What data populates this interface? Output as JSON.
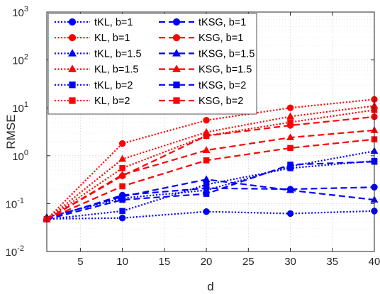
{
  "chart_data": {
    "type": "line",
    "xlabel": "d",
    "ylabel": "RMSE",
    "xlim": [
      1,
      40
    ],
    "ylim_log10": [
      -2,
      3
    ],
    "yscale": "log",
    "grid": true,
    "legend_placement": "top-left, two columns",
    "x_ticks": [
      "5",
      "10",
      "15",
      "20",
      "25",
      "30",
      "35",
      "40"
    ],
    "y_ticks": [
      {
        "base": "10",
        "exp": "-2"
      },
      {
        "base": "10",
        "exp": "-1"
      },
      {
        "base": "10",
        "exp": "0"
      },
      {
        "base": "10",
        "exp": "1"
      },
      {
        "base": "10",
        "exp": "2"
      },
      {
        "base": "10",
        "exp": "3"
      }
    ],
    "x": [
      1,
      10,
      20,
      30,
      40
    ],
    "series": [
      {
        "name": "tKL, b=1",
        "color": "#0000ff",
        "dash": "dotted",
        "marker": "circle",
        "values": [
          0.048,
          0.05,
          0.068,
          0.062,
          0.07
        ]
      },
      {
        "name": "KL, b=1",
        "color": "#ff0000",
        "dash": "dotted",
        "marker": "circle",
        "values": [
          0.047,
          1.8,
          5.5,
          10.0,
          15.0
        ]
      },
      {
        "name": "tKL, b=1.5",
        "color": "#0000ff",
        "dash": "dotted",
        "marker": "triangle",
        "values": [
          0.052,
          0.13,
          0.19,
          0.6,
          1.25
        ]
      },
      {
        "name": "KL, b=1.5",
        "color": "#ff0000",
        "dash": "dotted",
        "marker": "triangle",
        "values": [
          0.047,
          0.85,
          3.1,
          6.6,
          11.0
        ]
      },
      {
        "name": "tKL, b=2",
        "color": "#0000ff",
        "dash": "dotted",
        "marker": "square",
        "values": [
          0.047,
          0.07,
          0.25,
          0.55,
          0.78
        ]
      },
      {
        "name": "KL, b=2",
        "color": "#ff0000",
        "dash": "dotted",
        "marker": "square",
        "values": [
          0.047,
          0.55,
          2.6,
          5.0,
          9.0
        ]
      },
      {
        "name": "tKSG, b=1",
        "color": "#0000ff",
        "dash": "dashed",
        "marker": "circle",
        "values": [
          0.048,
          0.15,
          0.21,
          0.2,
          0.22
        ]
      },
      {
        "name": "KSG, b=1",
        "color": "#ff0000",
        "dash": "dashed",
        "marker": "circle",
        "values": [
          0.047,
          0.38,
          2.6,
          4.3,
          6.5
        ]
      },
      {
        "name": "tKSG, b=1.5",
        "color": "#0000ff",
        "dash": "dashed",
        "marker": "triangle",
        "values": [
          0.05,
          0.14,
          0.32,
          0.19,
          0.12
        ]
      },
      {
        "name": "KSG, b=1.5",
        "color": "#ff0000",
        "dash": "dashed",
        "marker": "triangle",
        "values": [
          0.047,
          0.4,
          1.3,
          2.4,
          3.4
        ]
      },
      {
        "name": "tKSG, b=2",
        "color": "#0000ff",
        "dash": "dashed",
        "marker": "square",
        "values": [
          0.047,
          0.12,
          0.16,
          0.65,
          0.75
        ]
      },
      {
        "name": "KSG, b=2",
        "color": "#ff0000",
        "dash": "dashed",
        "marker": "square",
        "values": [
          0.047,
          0.23,
          0.8,
          1.45,
          2.2
        ]
      }
    ]
  }
}
